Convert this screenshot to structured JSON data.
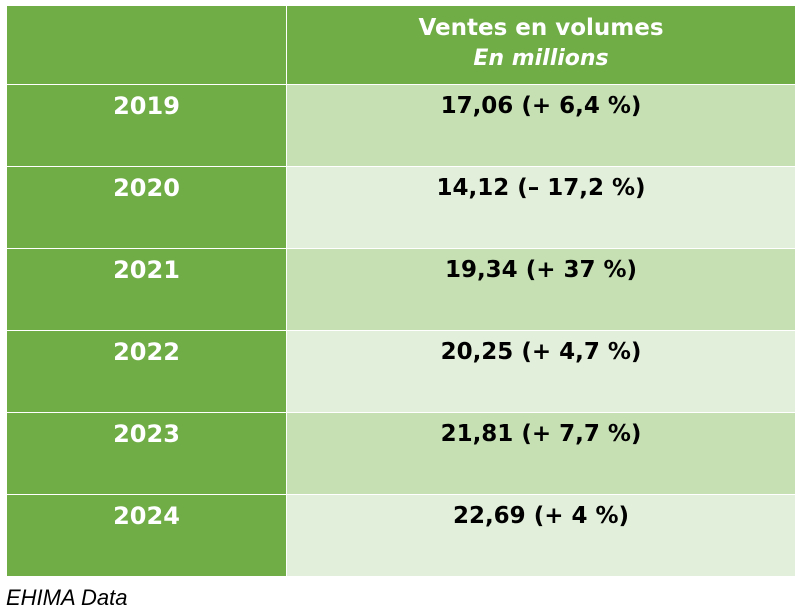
{
  "table": {
    "header": {
      "title": "Ventes en volumes",
      "subtitle": "En millions"
    },
    "rows": [
      {
        "year": "2019",
        "value": "17,06 (+ 6,4 %)"
      },
      {
        "year": "2020",
        "value": "14,12 (– 17,2 %)"
      },
      {
        "year": "2021",
        "value": "19,34 (+ 37 %)"
      },
      {
        "year": "2022",
        "value": "20,25 (+ 4,7 %)"
      },
      {
        "year": "2023",
        "value": "21,81 (+ 7,7 %)"
      },
      {
        "year": "2024",
        "value": "22,69 (+ 4 %)"
      }
    ]
  },
  "source": "EHIMA Data",
  "colors": {
    "header_green": "#70ad47",
    "row_dark": "#c6e0b4",
    "row_light": "#e2efda"
  }
}
